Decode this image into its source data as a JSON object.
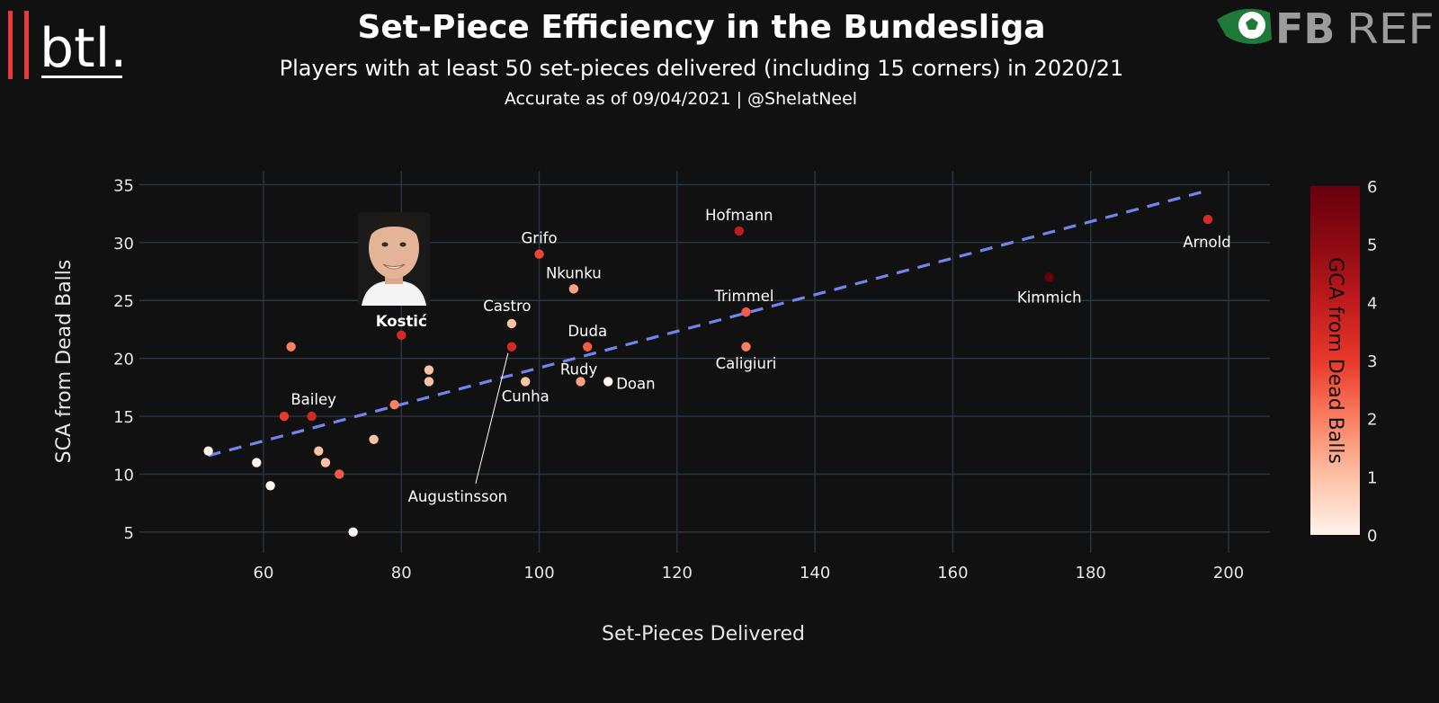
{
  "header": {
    "title": "Set-Piece Efficiency in the Bundesliga",
    "subtitle": "Players with at least 50 set-pieces delivered (including 15 corners) in 2020/21",
    "accuracy_note": "Accurate as of 09/04/2021 | @ShelatNeel"
  },
  "branding": {
    "left_logo_text": "btl.",
    "right_logo_text": "FBREF",
    "right_logo_bold": "FB",
    "right_logo_light": "REF"
  },
  "chart_data": {
    "type": "scatter",
    "title": "Set-Piece Efficiency in the Bundesliga",
    "subtitle": "Players with at least 50 set-pieces delivered (including 15 corners) in 2020/21",
    "xlabel": "Set-Pieces Delivered",
    "ylabel": "SCA from Dead Balls",
    "xlim": [
      42,
      206
    ],
    "ylim": [
      3.2,
      36.2
    ],
    "xticks": [
      60,
      80,
      100,
      120,
      140,
      160,
      180,
      200
    ],
    "yticks": [
      5,
      10,
      15,
      20,
      25,
      30,
      35
    ],
    "grid": true,
    "color_scale": {
      "title": "GCA from Dead Balls",
      "min": 0,
      "max": 6,
      "ticks": [
        0,
        1,
        2,
        3,
        4,
        5,
        6
      ],
      "colors": [
        "#fff3ec",
        "#fdc1a6",
        "#fb7f61",
        "#e8382a",
        "#c01b1d",
        "#8c0a12",
        "#67000d"
      ]
    },
    "trendline": {
      "x": [
        52,
        197
      ],
      "y": [
        11.6,
        34.5
      ],
      "style": "dashed",
      "color": "#7185ef"
    },
    "highlight": {
      "name": "Kostić",
      "photo": "player-photo"
    },
    "points": [
      {
        "x": 52,
        "y": 12,
        "gca": 0,
        "label": ""
      },
      {
        "x": 59,
        "y": 11,
        "gca": 0,
        "label": ""
      },
      {
        "x": 61,
        "y": 9,
        "gca": 0,
        "label": ""
      },
      {
        "x": 63,
        "y": 15,
        "gca": 3,
        "label": ""
      },
      {
        "x": 64,
        "y": 21,
        "gca": 2,
        "label": ""
      },
      {
        "x": 67,
        "y": 15,
        "gca": 3.5,
        "label": "Bailey"
      },
      {
        "x": 68,
        "y": 12,
        "gca": 1,
        "label": ""
      },
      {
        "x": 69,
        "y": 11,
        "gca": 1,
        "label": ""
      },
      {
        "x": 71,
        "y": 10,
        "gca": 2.5,
        "label": ""
      },
      {
        "x": 73,
        "y": 5,
        "gca": 0,
        "label": ""
      },
      {
        "x": 76,
        "y": 13,
        "gca": 1,
        "label": ""
      },
      {
        "x": 79,
        "y": 16,
        "gca": 2,
        "label": ""
      },
      {
        "x": 80,
        "y": 22,
        "gca": 3.5,
        "label": "Kostić"
      },
      {
        "x": 84,
        "y": 19,
        "gca": 1,
        "label": ""
      },
      {
        "x": 84,
        "y": 18,
        "gca": 1,
        "label": ""
      },
      {
        "x": 96,
        "y": 23,
        "gca": 1,
        "label": "Castro"
      },
      {
        "x": 96,
        "y": 21,
        "gca": 3.5,
        "label": "Augustinsson"
      },
      {
        "x": 98,
        "y": 18,
        "gca": 1,
        "label": "Cunha"
      },
      {
        "x": 100,
        "y": 29,
        "gca": 2.8,
        "label": "Grifo"
      },
      {
        "x": 105,
        "y": 26,
        "gca": 1.5,
        "label": "Nkunku"
      },
      {
        "x": 106,
        "y": 18,
        "gca": 1.5,
        "label": "Rudy"
      },
      {
        "x": 107,
        "y": 21,
        "gca": 2.5,
        "label": "Duda"
      },
      {
        "x": 110,
        "y": 18,
        "gca": 0,
        "label": "Doan"
      },
      {
        "x": 129,
        "y": 31,
        "gca": 4,
        "label": "Hofmann"
      },
      {
        "x": 130,
        "y": 24,
        "gca": 2.5,
        "label": "Trimmel"
      },
      {
        "x": 130,
        "y": 21,
        "gca": 2,
        "label": "Caligiuri"
      },
      {
        "x": 174,
        "y": 27,
        "gca": 6,
        "label": "Kimmich"
      },
      {
        "x": 197,
        "y": 32,
        "gca": 3.5,
        "label": "Arnold"
      }
    ]
  }
}
